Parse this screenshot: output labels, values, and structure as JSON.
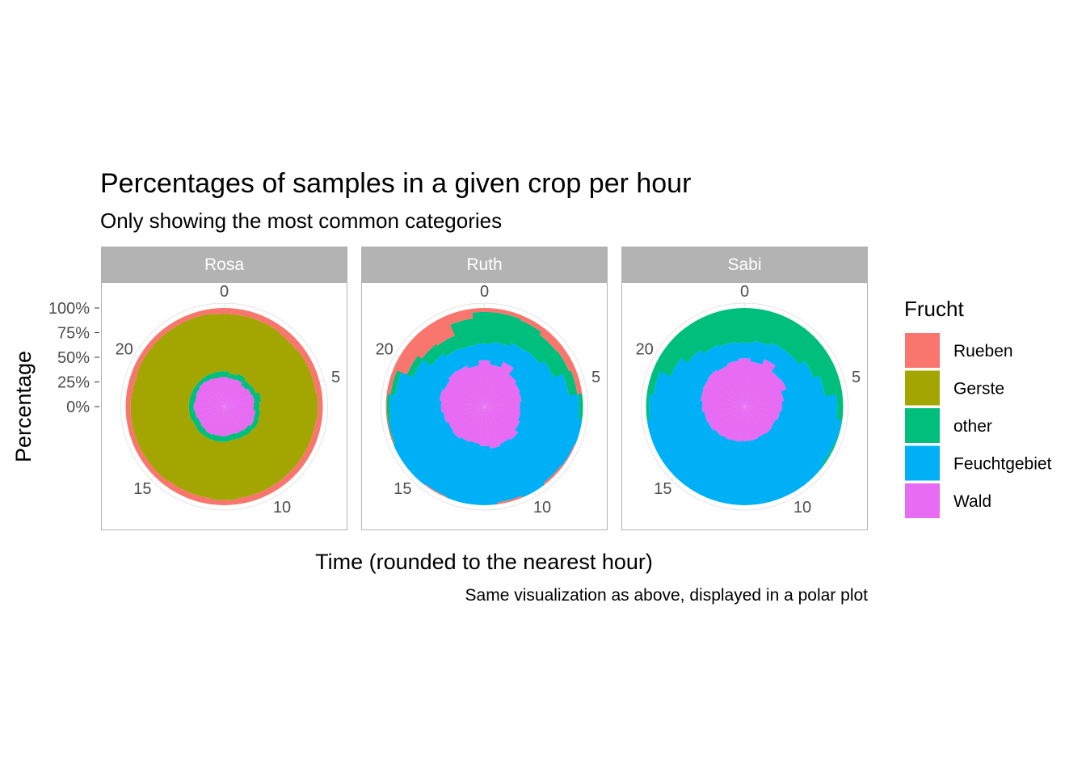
{
  "chart_data": {
    "type": "polar-stacked-bar",
    "title": "Percentages of samples in a given crop per hour",
    "subtitle": "Only showing the most common categories",
    "caption": "Same visualization as above, displayed in a polar plot",
    "xlabel": "Time (rounded to the nearest hour)",
    "ylabel": "Percentage",
    "theta_ticks": [
      "0",
      "5",
      "10",
      "15",
      "20"
    ],
    "r_ticks": [
      "0%",
      "25%",
      "50%",
      "75%",
      "100%"
    ],
    "hours": [
      0,
      1,
      2,
      3,
      4,
      5,
      6,
      7,
      8,
      9,
      10,
      11,
      12,
      13,
      14,
      15,
      16,
      17,
      18,
      19,
      20,
      21,
      22,
      23
    ],
    "legend": {
      "title": "Frucht",
      "items": [
        {
          "name": "Rueben",
          "color": "#F8766D"
        },
        {
          "name": "Gerste",
          "color": "#A3A500"
        },
        {
          "name": "other",
          "color": "#00BF7D"
        },
        {
          "name": "Feuchtgebiet",
          "color": "#00B0F6"
        },
        {
          "name": "Wald",
          "color": "#E76BF3"
        }
      ]
    },
    "panels": [
      {
        "name": "Rosa",
        "series": [
          {
            "name": "Wald",
            "values": [
              30,
              29,
              30,
              28,
              30,
              31,
              30,
              32,
              33,
              31,
              30,
              29,
              30,
              30,
              31,
              30,
              29,
              30,
              31,
              30,
              31,
              32,
              31,
              30
            ]
          },
          {
            "name": "Feuchtgebiet",
            "values": [
              0,
              0,
              0,
              0,
              0,
              0,
              0,
              0,
              0,
              0,
              0,
              0,
              0,
              0,
              0,
              0,
              0,
              0,
              0,
              0,
              0,
              0,
              0,
              0
            ]
          },
          {
            "name": "other",
            "values": [
              6,
              5,
              6,
              6,
              5,
              7,
              6,
              5,
              5,
              6,
              6,
              6,
              6,
              6,
              5,
              6,
              6,
              6,
              5,
              6,
              5,
              4,
              5,
              6
            ]
          },
          {
            "name": "Gerste",
            "values": [
              58,
              60,
              58,
              59,
              59,
              56,
              59,
              57,
              56,
              57,
              58,
              59,
              59,
              58,
              58,
              59,
              60,
              59,
              59,
              58,
              59,
              59,
              59,
              59
            ]
          },
          {
            "name": "Rueben",
            "values": [
              6,
              6,
              6,
              7,
              6,
              6,
              5,
              6,
              6,
              6,
              6,
              6,
              5,
              6,
              6,
              5,
              5,
              5,
              5,
              6,
              5,
              5,
              5,
              5
            ]
          }
        ]
      },
      {
        "name": "Ruth",
        "series": [
          {
            "name": "Wald",
            "values": [
              47,
              43,
              49,
              41,
              39,
              38,
              36,
              37,
              39,
              43,
              41,
              43,
              40,
              38,
              39,
              41,
              40,
              42,
              44,
              46,
              44,
              46,
              45,
              42
            ]
          },
          {
            "name": "Feuchtgebiet",
            "values": [
              17,
              23,
              21,
              30,
              37,
              48,
              60,
              63,
              60,
              55,
              59,
              55,
              60,
              62,
              60,
              59,
              60,
              56,
              52,
              45,
              34,
              22,
              19,
              21
            ]
          },
          {
            "name": "other",
            "values": [
              32,
              30,
              25,
              21,
              17,
              9,
              4,
              0,
              0,
              0,
              0,
              0,
              0,
              0,
              0,
              0,
              0,
              1,
              3,
              5,
              7,
              12,
              14,
              27
            ]
          },
          {
            "name": "Rueben",
            "values": [
              4,
              4,
              5,
              8,
              7,
              5,
              0,
              0,
              1,
              2,
              0,
              2,
              0,
              0,
              1,
              0,
              0,
              1,
              1,
              4,
              15,
              20,
              22,
              10
            ]
          }
        ]
      },
      {
        "name": "Sabi",
        "series": [
          {
            "name": "Wald",
            "values": [
              49,
              46,
              52,
              45,
              46,
              40,
              38,
              36,
              34,
              35,
              34,
              35,
              35,
              36,
              37,
              38,
              40,
              41,
              43,
              45,
              46,
              47,
              45,
              47
            ]
          },
          {
            "name": "Feuchtgebiet",
            "values": [
              16,
              21,
              18,
              25,
              30,
              42,
              56,
              63,
              64,
              65,
              66,
              65,
              65,
              64,
              63,
              62,
              60,
              59,
              54,
              48,
              35,
              26,
              23,
              19
            ]
          },
          {
            "name": "other",
            "values": [
              35,
              33,
              30,
              30,
              24,
              18,
              6,
              1,
              2,
              0,
              0,
              0,
              0,
              0,
              0,
              0,
              0,
              0,
              3,
              7,
              19,
              27,
              32,
              34
            ]
          }
        ]
      }
    ]
  }
}
